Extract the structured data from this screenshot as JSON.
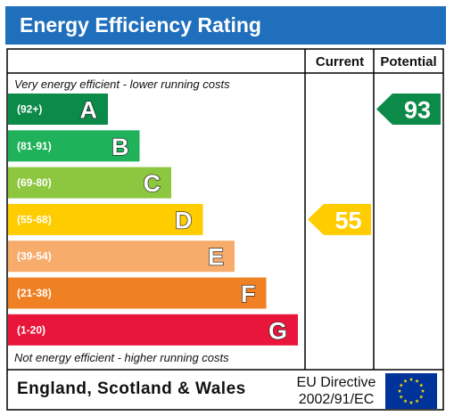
{
  "title": "Energy Efficiency Rating",
  "columns": {
    "current": "Current",
    "potential": "Potential"
  },
  "captions": {
    "top": "Very energy efficient - lower running costs",
    "bottom": "Not energy efficient - higher running costs"
  },
  "footer": {
    "region": "England, Scotland & Wales",
    "directive_line1": "EU Directive",
    "directive_line2": "2002/91/EC"
  },
  "chart_data": {
    "type": "bar",
    "bands": [
      {
        "letter": "A",
        "range": "(92+)",
        "color": "#0c8a48"
      },
      {
        "letter": "B",
        "range": "(81-91)",
        "color": "#1fb25a"
      },
      {
        "letter": "C",
        "range": "(69-80)",
        "color": "#8dc63f"
      },
      {
        "letter": "D",
        "range": "(55-68)",
        "color": "#ffcc00"
      },
      {
        "letter": "E",
        "range": "(39-54)",
        "color": "#f7ac6b"
      },
      {
        "letter": "F",
        "range": "(21-38)",
        "color": "#ef8023"
      },
      {
        "letter": "G",
        "range": "(1-20)",
        "color": "#e9153b"
      }
    ],
    "current": {
      "value": 55,
      "band": "D",
      "color": "#ffcc00"
    },
    "potential": {
      "value": 93,
      "band": "A",
      "color": "#0c8a48"
    }
  },
  "colors": {
    "header": "#1f6fbd",
    "flag_blue": "#003399",
    "flag_star": "#ffdd00"
  },
  "icons": {
    "flag": "eu-flag-icon"
  }
}
